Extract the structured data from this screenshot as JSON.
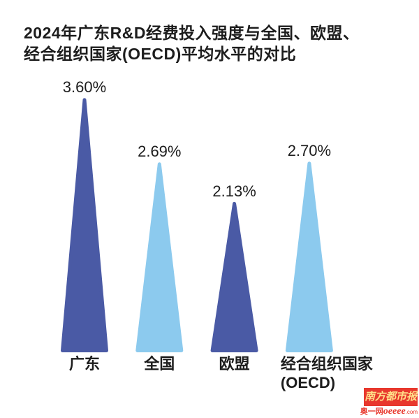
{
  "chart_data": {
    "type": "bar",
    "variant": "triangle-peak-bars",
    "title": "2024年广东R&D经费投入强度与全国、欧盟、经合组织国家(OECD)平均水平的对比",
    "title_lines": [
      "2024年广东R&D经费投入强度与全国、欧盟、",
      "经合组织国家(OECD)平均水平的对比"
    ],
    "categories": [
      "广东",
      "全国",
      "欧盟",
      "经合组织国家(OECD)"
    ],
    "values": [
      3.6,
      2.69,
      2.13,
      2.7
    ],
    "unit": "%",
    "xlabel": "",
    "ylabel": "",
    "ylim": [
      0,
      3.8
    ],
    "grid": false,
    "legend": false,
    "bars": [
      {
        "key": "guangdong",
        "category": "广东",
        "value": 3.6,
        "value_label": "3.60%",
        "color": "#4A5AA5",
        "label_lines": [
          "广东"
        ]
      },
      {
        "key": "national",
        "category": "全国",
        "value": 2.69,
        "value_label": "2.69%",
        "color": "#8CCAEE",
        "label_lines": [
          "全国"
        ]
      },
      {
        "key": "eu",
        "category": "欧盟",
        "value": 2.13,
        "value_label": "2.13%",
        "color": "#4A5AA5",
        "label_lines": [
          "欧盟"
        ]
      },
      {
        "key": "oecd",
        "category": "经合组织国家(OECD)",
        "value": 2.7,
        "value_label": "2.70%",
        "color": "#8CCAEE",
        "label_lines": [
          "经合组织国家",
          "(OECD)"
        ]
      }
    ],
    "colors": {
      "dark_blue": "#4A5AA5",
      "light_blue": "#8CCAEE"
    }
  },
  "branding": {
    "newspaper": "南方都市报",
    "site_cn": "奥一网",
    "site_en": "oeeee",
    "site_tld": ".com",
    "brand_red": "#E8382D",
    "logo_text_color": "#FFE08A"
  }
}
